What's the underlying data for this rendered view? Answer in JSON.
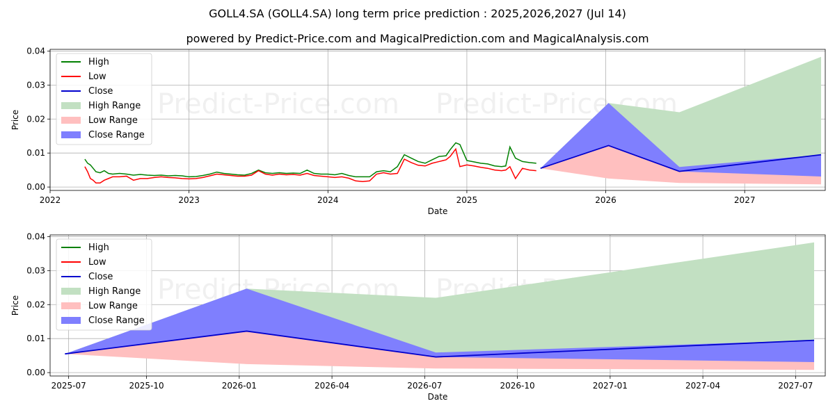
{
  "header": {
    "title": "GOLL4.SA (GOLL4.SA) long term price prediction : 2025,2026,2027 (Jul 14)",
    "subtitle": "powered by Predict-Price.com and MagicalPrediction.com and MagicalAnalysis.com"
  },
  "watermark": "Predict-Price.com",
  "colors": {
    "high": "#008000",
    "low": "#ff0000",
    "close": "#0000cd",
    "high_range": "#c2e0c2",
    "low_range": "#ffbfbf",
    "close_range": "#7f7ffe",
    "grid": "#b0b0b0"
  },
  "chart_data": [
    {
      "type": "line",
      "name": "top",
      "xlabel": "Date",
      "ylabel": "Price",
      "xlim": [
        2022.0,
        2027.58
      ],
      "ylim": [
        -0.001,
        0.0405
      ],
      "x_ticks": [
        {
          "x": 2022,
          "label": "2022"
        },
        {
          "x": 2023,
          "label": "2023"
        },
        {
          "x": 2024,
          "label": "2024"
        },
        {
          "x": 2025,
          "label": "2025"
        },
        {
          "x": 2026,
          "label": "2026"
        },
        {
          "x": 2027,
          "label": "2027"
        }
      ],
      "y_ticks": [
        {
          "y": 0.0,
          "label": "0.00"
        },
        {
          "y": 0.01,
          "label": "0.01"
        },
        {
          "y": 0.02,
          "label": "0.02"
        },
        {
          "y": 0.03,
          "label": "0.03"
        },
        {
          "y": 0.04,
          "label": "0.04"
        }
      ],
      "legend_position": "top-left",
      "legend": [
        {
          "label": "High",
          "kind": "line",
          "series": "high"
        },
        {
          "label": "Low",
          "kind": "line",
          "series": "low"
        },
        {
          "label": "Close",
          "kind": "line",
          "series": "close"
        },
        {
          "label": "High Range",
          "kind": "patch",
          "series": "high_range"
        },
        {
          "label": "Low Range",
          "kind": "patch",
          "series": "low_range"
        },
        {
          "label": "Close Range",
          "kind": "patch",
          "series": "close_range"
        }
      ],
      "history": {
        "x": [
          2022.25,
          2022.27,
          2022.29,
          2022.31,
          2022.33,
          2022.36,
          2022.39,
          2022.42,
          2022.45,
          2022.5,
          2022.55,
          2022.6,
          2022.65,
          2022.7,
          2022.75,
          2022.8,
          2022.85,
          2022.9,
          2022.95,
          2023.0,
          2023.05,
          2023.1,
          2023.15,
          2023.2,
          2023.25,
          2023.3,
          2023.35,
          2023.4,
          2023.45,
          2023.5,
          2023.55,
          2023.6,
          2023.65,
          2023.7,
          2023.75,
          2023.8,
          2023.85,
          2023.9,
          2023.95,
          2024.0,
          2024.05,
          2024.1,
          2024.15,
          2024.2,
          2024.25,
          2024.3,
          2024.35,
          2024.4,
          2024.45,
          2024.5,
          2024.55,
          2024.6,
          2024.65,
          2024.7,
          2024.75,
          2024.8,
          2024.85,
          2024.88,
          2024.92,
          2024.95,
          2025.0,
          2025.05,
          2025.1,
          2025.15,
          2025.2,
          2025.25,
          2025.28,
          2025.31,
          2025.35,
          2025.4,
          2025.45,
          2025.5
        ],
        "high": [
          0.0082,
          0.007,
          0.0065,
          0.0055,
          0.0045,
          0.0042,
          0.0048,
          0.004,
          0.0038,
          0.004,
          0.0038,
          0.0035,
          0.0037,
          0.0035,
          0.0034,
          0.0035,
          0.0033,
          0.0034,
          0.0033,
          0.003,
          0.0031,
          0.0034,
          0.0038,
          0.0044,
          0.004,
          0.0038,
          0.0036,
          0.0035,
          0.004,
          0.005,
          0.0042,
          0.004,
          0.0042,
          0.004,
          0.0041,
          0.004,
          0.005,
          0.004,
          0.0038,
          0.0038,
          0.0036,
          0.004,
          0.0034,
          0.003,
          0.003,
          0.003,
          0.0045,
          0.0048,
          0.0045,
          0.006,
          0.0095,
          0.0085,
          0.0075,
          0.007,
          0.008,
          0.009,
          0.0092,
          0.011,
          0.013,
          0.0125,
          0.0078,
          0.0074,
          0.007,
          0.0068,
          0.0062,
          0.006,
          0.0062,
          0.0118,
          0.0085,
          0.0075,
          0.0072,
          0.007
        ],
        "low": [
          0.006,
          0.0045,
          0.0025,
          0.002,
          0.0012,
          0.0012,
          0.002,
          0.0025,
          0.003,
          0.003,
          0.0032,
          0.002,
          0.0025,
          0.0025,
          0.0028,
          0.003,
          0.0028,
          0.0027,
          0.0025,
          0.0024,
          0.0025,
          0.0028,
          0.0033,
          0.0038,
          0.0036,
          0.0034,
          0.0032,
          0.0032,
          0.0035,
          0.0048,
          0.0038,
          0.0035,
          0.0038,
          0.0036,
          0.0037,
          0.0035,
          0.004,
          0.0034,
          0.0032,
          0.003,
          0.0028,
          0.003,
          0.0026,
          0.0018,
          0.0016,
          0.0018,
          0.0038,
          0.0042,
          0.0038,
          0.004,
          0.0082,
          0.0072,
          0.0064,
          0.0062,
          0.007,
          0.0075,
          0.008,
          0.009,
          0.0112,
          0.006,
          0.0065,
          0.0062,
          0.0058,
          0.0055,
          0.005,
          0.0048,
          0.005,
          0.006,
          0.0025,
          0.0055,
          0.005,
          0.0048
        ]
      },
      "prediction": {
        "x": [
          2025.53,
          2026.02,
          2026.53,
          2027.55
        ],
        "close": [
          0.0055,
          0.0122,
          0.0046,
          0.0095
        ],
        "close_upper": [
          0.0055,
          0.0247,
          0.0059,
          0.0095
        ],
        "close_lower": [
          0.0055,
          0.0122,
          0.0046,
          0.0031
        ],
        "low_lower": [
          0.0055,
          0.0025,
          0.0012,
          0.0008
        ],
        "high_upper": [
          0.0055,
          0.0247,
          0.022,
          0.0383
        ]
      }
    },
    {
      "type": "line",
      "name": "bottom",
      "xlabel": "Date",
      "ylabel": "Price",
      "xlim": [
        2025.49,
        2027.58
      ],
      "ylim": [
        -0.001,
        0.0405
      ],
      "x_ticks": [
        {
          "x": 2025.54,
          "label": "2025-07"
        },
        {
          "x": 2025.75,
          "label": "2025-10"
        },
        {
          "x": 2026.0,
          "label": "2026-01"
        },
        {
          "x": 2026.25,
          "label": "2026-04"
        },
        {
          "x": 2026.5,
          "label": "2026-07"
        },
        {
          "x": 2026.75,
          "label": "2026-10"
        },
        {
          "x": 2027.0,
          "label": "2027-01"
        },
        {
          "x": 2027.25,
          "label": "2027-04"
        },
        {
          "x": 2027.5,
          "label": "2027-07"
        }
      ],
      "y_ticks": [
        {
          "y": 0.0,
          "label": "0.00"
        },
        {
          "y": 0.01,
          "label": "0.01"
        },
        {
          "y": 0.02,
          "label": "0.02"
        },
        {
          "y": 0.03,
          "label": "0.03"
        },
        {
          "y": 0.04,
          "label": "0.04"
        }
      ],
      "legend_position": "top-left",
      "legend": [
        {
          "label": "High",
          "kind": "line",
          "series": "high"
        },
        {
          "label": "Low",
          "kind": "line",
          "series": "low"
        },
        {
          "label": "Close",
          "kind": "line",
          "series": "close"
        },
        {
          "label": "High Range",
          "kind": "patch",
          "series": "high_range"
        },
        {
          "label": "Low Range",
          "kind": "patch",
          "series": "low_range"
        },
        {
          "label": "Close Range",
          "kind": "patch",
          "series": "close_range"
        }
      ],
      "prediction": {
        "x": [
          2025.53,
          2026.02,
          2026.53,
          2027.55
        ],
        "close": [
          0.0055,
          0.0122,
          0.0046,
          0.0095
        ],
        "close_upper": [
          0.0055,
          0.0247,
          0.0059,
          0.0095
        ],
        "close_lower": [
          0.0055,
          0.0122,
          0.0046,
          0.0031
        ],
        "low_lower": [
          0.0055,
          0.0025,
          0.0012,
          0.0008
        ],
        "high_upper": [
          0.0055,
          0.0247,
          0.022,
          0.0383
        ]
      }
    }
  ]
}
